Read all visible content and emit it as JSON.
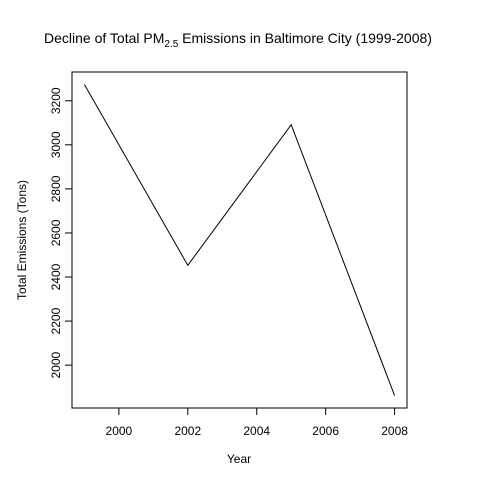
{
  "chart_data": {
    "type": "line",
    "title": {
      "before": "Decline of Total PM",
      "subscript": "2.5",
      "after": " Emissions in Baltimore City (1999-2008)"
    },
    "xlabel": "Year",
    "ylabel": "Total Emissions (Tons)",
    "x": [
      1999,
      2002,
      2005,
      2008
    ],
    "y": [
      3274,
      2453,
      3091,
      1862
    ],
    "xticks": [
      "2000",
      "2002",
      "2004",
      "2006",
      "2008"
    ],
    "yticks": [
      "2000",
      "2200",
      "2400",
      "2600",
      "2800",
      "3000",
      "3200"
    ],
    "xlim": [
      1998.64,
      2008.36
    ],
    "ylim": [
      1805.5,
      3330.5
    ],
    "grid": false,
    "line_color": "#000000"
  }
}
